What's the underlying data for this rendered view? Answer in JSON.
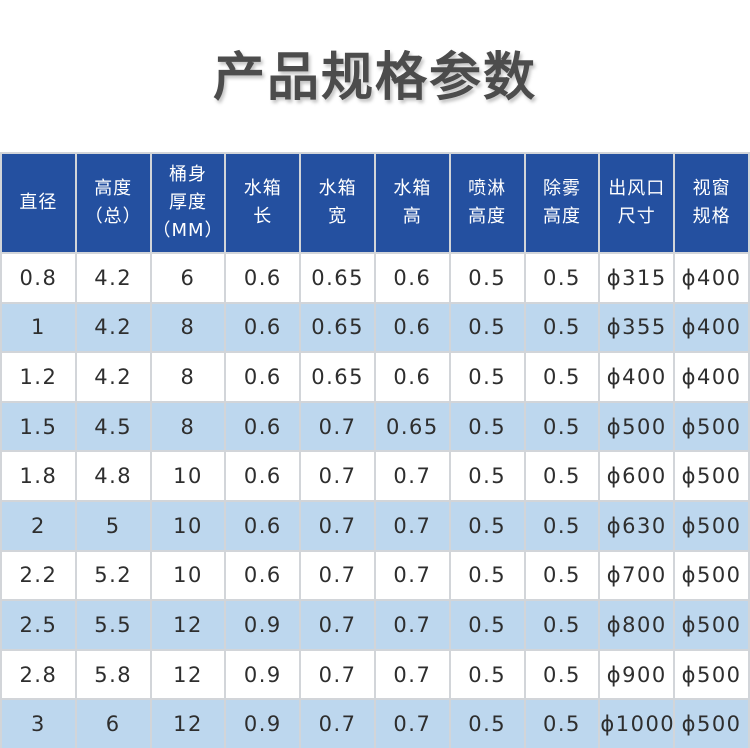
{
  "page": {
    "title": "产品规格参数"
  },
  "colors": {
    "header_bg": "#2450a0",
    "header_text": "#ffffff",
    "row_bg": "#ffffff",
    "alt_row_bg": "#bdd7ee",
    "grid_line": "#d2d5d9",
    "title_color": "#4c4c4c"
  },
  "table": {
    "headers": [
      "直径",
      "高度\n（总）",
      "桶身\n厚度\n（MM）",
      "水箱\n长",
      "水箱\n宽",
      "水箱\n高",
      "喷淋\n高度",
      "除雾\n高度",
      "出风口\n尺寸",
      "视窗\n规格"
    ],
    "rows": [
      {
        "cells": [
          "0.8",
          "4.2",
          "6",
          "0.6",
          "0.65",
          "0.6",
          "0.5",
          "0.5",
          "ϕ315",
          "ϕ400"
        ]
      },
      {
        "cells": [
          "1",
          "4.2",
          "8",
          "0.6",
          "0.65",
          "0.6",
          "0.5",
          "0.5",
          "ϕ355",
          "ϕ400"
        ]
      },
      {
        "cells": [
          "1.2",
          "4.2",
          "8",
          "0.6",
          "0.65",
          "0.6",
          "0.5",
          "0.5",
          "ϕ400",
          "ϕ400"
        ]
      },
      {
        "cells": [
          "1.5",
          "4.5",
          "8",
          "0.6",
          "0.7",
          "0.65",
          "0.5",
          "0.5",
          "ϕ500",
          "ϕ500"
        ]
      },
      {
        "cells": [
          "1.8",
          "4.8",
          "10",
          "0.6",
          "0.7",
          "0.7",
          "0.5",
          "0.5",
          "ϕ600",
          "ϕ500"
        ]
      },
      {
        "cells": [
          "2",
          "5",
          "10",
          "0.6",
          "0.7",
          "0.7",
          "0.5",
          "0.5",
          "ϕ630",
          "ϕ500"
        ]
      },
      {
        "cells": [
          "2.2",
          "5.2",
          "10",
          "0.6",
          "0.7",
          "0.7",
          "0.5",
          "0.5",
          "ϕ700",
          "ϕ500"
        ]
      },
      {
        "cells": [
          "2.5",
          "5.5",
          "12",
          "0.9",
          "0.7",
          "0.7",
          "0.5",
          "0.5",
          "ϕ800",
          "ϕ500"
        ]
      },
      {
        "cells": [
          "2.8",
          "5.8",
          "12",
          "0.9",
          "0.7",
          "0.7",
          "0.5",
          "0.5",
          "ϕ900",
          "ϕ500"
        ]
      },
      {
        "cells": [
          "3",
          "6",
          "12",
          "0.9",
          "0.7",
          "0.7",
          "0.5",
          "0.5",
          "ϕ1000",
          "ϕ500"
        ]
      }
    ]
  }
}
